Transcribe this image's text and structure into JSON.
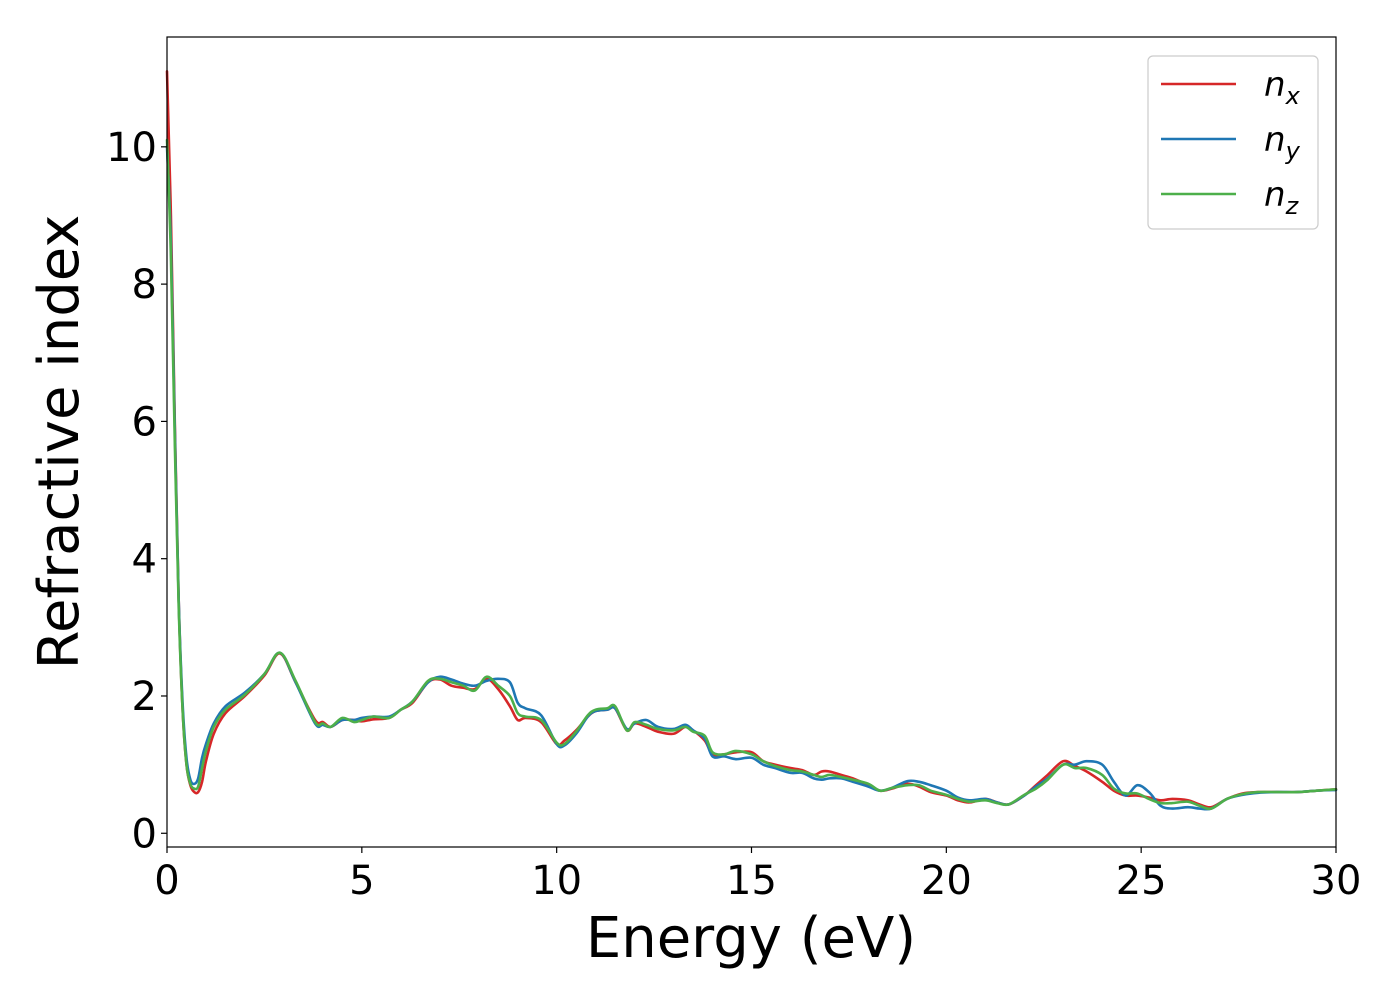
{
  "chart_data": {
    "type": "line",
    "xlabel": "Energy (eV)",
    "ylabel": "Refractive index",
    "xlim": [
      0,
      30
    ],
    "ylim": [
      -0.2,
      11.6
    ],
    "xticks": [
      "0",
      "5",
      "10",
      "15",
      "20",
      "25",
      "30"
    ],
    "yticks": [
      "0",
      "2",
      "4",
      "6",
      "8",
      "10"
    ],
    "legend_position": "top-right",
    "grid": false,
    "series": [
      {
        "name": "n",
        "subscript": "x",
        "color": "#d62728",
        "x": [
          0,
          0.1,
          0.2,
          0.3,
          0.4,
          0.5,
          0.6,
          0.7,
          0.8,
          0.9,
          1.0,
          1.2,
          1.5,
          2.0,
          2.5,
          2.9,
          3.3,
          3.8,
          4.0,
          4.2,
          4.5,
          4.8,
          5.0,
          5.3,
          5.7,
          6.0,
          6.3,
          6.7,
          7.0,
          7.3,
          7.6,
          7.9,
          8.2,
          8.5,
          8.8,
          9.0,
          9.2,
          9.6,
          10.0,
          10.2,
          10.5,
          10.8,
          11.0,
          11.3,
          11.5,
          11.8,
          12.0,
          12.3,
          12.6,
          13.0,
          13.3,
          13.5,
          13.8,
          14.0,
          14.3,
          14.6,
          15.0,
          15.3,
          15.6,
          16.0,
          16.3,
          16.6,
          16.8,
          17.0,
          17.3,
          17.6,
          18.0,
          18.3,
          18.6,
          19.0,
          19.3,
          19.6,
          20.0,
          20.3,
          20.6,
          21.0,
          21.3,
          21.6,
          22.0,
          22.3,
          22.6,
          23.0,
          23.3,
          23.6,
          24.0,
          24.3,
          24.6,
          24.9,
          25.2,
          25.5,
          25.8,
          26.2,
          26.5,
          26.8,
          27.2,
          27.6,
          28.0,
          28.5,
          29.0,
          29.5,
          30.0
        ],
        "y": [
          11.1,
          9.0,
          6.0,
          3.4,
          1.8,
          1.0,
          0.7,
          0.6,
          0.6,
          0.75,
          1.05,
          1.45,
          1.75,
          2.0,
          2.3,
          2.62,
          2.2,
          1.65,
          1.62,
          1.55,
          1.65,
          1.65,
          1.63,
          1.66,
          1.68,
          1.8,
          1.9,
          2.2,
          2.24,
          2.15,
          2.12,
          2.1,
          2.25,
          2.1,
          1.85,
          1.65,
          1.68,
          1.62,
          1.3,
          1.35,
          1.5,
          1.7,
          1.78,
          1.8,
          1.82,
          1.5,
          1.6,
          1.55,
          1.48,
          1.45,
          1.55,
          1.5,
          1.35,
          1.15,
          1.15,
          1.18,
          1.18,
          1.05,
          1.0,
          0.95,
          0.92,
          0.85,
          0.9,
          0.9,
          0.85,
          0.8,
          0.7,
          0.62,
          0.65,
          0.72,
          0.68,
          0.6,
          0.55,
          0.48,
          0.45,
          0.5,
          0.45,
          0.42,
          0.55,
          0.7,
          0.85,
          1.05,
          0.98,
          0.9,
          0.75,
          0.62,
          0.55,
          0.55,
          0.52,
          0.48,
          0.5,
          0.48,
          0.42,
          0.38,
          0.5,
          0.58,
          0.6,
          0.6,
          0.6,
          0.62,
          0.64
        ]
      },
      {
        "name": "n",
        "subscript": "y",
        "color": "#1f77b4",
        "x": [
          0,
          0.1,
          0.2,
          0.3,
          0.4,
          0.5,
          0.6,
          0.7,
          0.8,
          0.9,
          1.0,
          1.2,
          1.5,
          2.0,
          2.5,
          2.9,
          3.3,
          3.8,
          4.0,
          4.2,
          4.5,
          4.8,
          5.0,
          5.3,
          5.7,
          6.0,
          6.3,
          6.7,
          7.0,
          7.3,
          7.6,
          7.9,
          8.2,
          8.5,
          8.8,
          9.0,
          9.2,
          9.6,
          10.0,
          10.2,
          10.5,
          10.8,
          11.0,
          11.3,
          11.5,
          11.8,
          12.0,
          12.3,
          12.6,
          13.0,
          13.3,
          13.5,
          13.8,
          14.0,
          14.3,
          14.6,
          15.0,
          15.3,
          15.6,
          16.0,
          16.3,
          16.6,
          16.8,
          17.0,
          17.3,
          17.6,
          18.0,
          18.3,
          18.6,
          19.0,
          19.3,
          19.6,
          20.0,
          20.3,
          20.6,
          21.0,
          21.3,
          21.6,
          22.0,
          22.3,
          22.6,
          23.0,
          23.3,
          23.6,
          24.0,
          24.3,
          24.6,
          24.9,
          25.2,
          25.5,
          25.8,
          26.2,
          26.5,
          26.8,
          27.2,
          27.6,
          28.0,
          28.5,
          29.0,
          29.5,
          30.0
        ],
        "y": [
          10.0,
          8.6,
          5.9,
          3.4,
          1.9,
          1.1,
          0.78,
          0.72,
          0.8,
          1.1,
          1.3,
          1.6,
          1.85,
          2.05,
          2.32,
          2.63,
          2.2,
          1.6,
          1.58,
          1.55,
          1.65,
          1.65,
          1.68,
          1.7,
          1.7,
          1.8,
          1.92,
          2.2,
          2.28,
          2.24,
          2.18,
          2.15,
          2.22,
          2.25,
          2.2,
          1.9,
          1.82,
          1.72,
          1.3,
          1.28,
          1.45,
          1.7,
          1.78,
          1.8,
          1.82,
          1.52,
          1.6,
          1.65,
          1.55,
          1.52,
          1.58,
          1.5,
          1.38,
          1.12,
          1.12,
          1.08,
          1.1,
          1.0,
          0.95,
          0.88,
          0.88,
          0.8,
          0.78,
          0.8,
          0.8,
          0.75,
          0.68,
          0.62,
          0.66,
          0.76,
          0.75,
          0.7,
          0.62,
          0.52,
          0.48,
          0.5,
          0.45,
          0.42,
          0.55,
          0.68,
          0.8,
          1.0,
          1.0,
          1.05,
          1.0,
          0.75,
          0.55,
          0.7,
          0.6,
          0.4,
          0.36,
          0.38,
          0.36,
          0.36,
          0.5,
          0.56,
          0.59,
          0.6,
          0.6,
          0.62,
          0.63
        ]
      },
      {
        "name": "n",
        "subscript": "z",
        "color": "#4daf4a",
        "x": [
          0,
          0.1,
          0.2,
          0.3,
          0.4,
          0.5,
          0.6,
          0.7,
          0.8,
          0.9,
          1.0,
          1.2,
          1.5,
          2.0,
          2.5,
          2.9,
          3.3,
          3.8,
          4.0,
          4.2,
          4.5,
          4.8,
          5.0,
          5.3,
          5.7,
          6.0,
          6.3,
          6.7,
          7.0,
          7.3,
          7.6,
          7.9,
          8.2,
          8.5,
          8.8,
          9.0,
          9.2,
          9.6,
          10.0,
          10.2,
          10.5,
          10.8,
          11.0,
          11.3,
          11.5,
          11.8,
          12.0,
          12.3,
          12.6,
          13.0,
          13.3,
          13.5,
          13.8,
          14.0,
          14.3,
          14.6,
          15.0,
          15.3,
          15.6,
          16.0,
          16.3,
          16.6,
          16.8,
          17.0,
          17.3,
          17.6,
          18.0,
          18.3,
          18.6,
          19.0,
          19.3,
          19.6,
          20.0,
          20.3,
          20.6,
          21.0,
          21.3,
          21.6,
          22.0,
          22.3,
          22.6,
          23.0,
          23.3,
          23.6,
          24.0,
          24.3,
          24.6,
          24.9,
          25.2,
          25.5,
          25.8,
          26.2,
          26.5,
          26.8,
          27.2,
          27.6,
          28.0,
          28.5,
          29.0,
          29.5,
          30.0
        ],
        "y": [
          10.1,
          8.4,
          5.7,
          3.3,
          1.8,
          1.0,
          0.72,
          0.65,
          0.68,
          0.95,
          1.2,
          1.55,
          1.8,
          2.02,
          2.32,
          2.63,
          2.22,
          1.62,
          1.6,
          1.55,
          1.68,
          1.62,
          1.65,
          1.7,
          1.68,
          1.8,
          1.92,
          2.22,
          2.25,
          2.2,
          2.15,
          2.08,
          2.28,
          2.15,
          2.0,
          1.75,
          1.7,
          1.65,
          1.32,
          1.3,
          1.48,
          1.72,
          1.8,
          1.82,
          1.85,
          1.5,
          1.62,
          1.58,
          1.52,
          1.5,
          1.55,
          1.48,
          1.42,
          1.18,
          1.15,
          1.2,
          1.15,
          1.05,
          0.98,
          0.92,
          0.9,
          0.85,
          0.82,
          0.85,
          0.82,
          0.78,
          0.72,
          0.62,
          0.66,
          0.7,
          0.7,
          0.62,
          0.56,
          0.5,
          0.46,
          0.48,
          0.44,
          0.42,
          0.56,
          0.65,
          0.78,
          1.0,
          0.95,
          0.95,
          0.85,
          0.65,
          0.58,
          0.58,
          0.5,
          0.44,
          0.44,
          0.46,
          0.4,
          0.36,
          0.5,
          0.57,
          0.6,
          0.6,
          0.6,
          0.62,
          0.64
        ]
      }
    ]
  }
}
